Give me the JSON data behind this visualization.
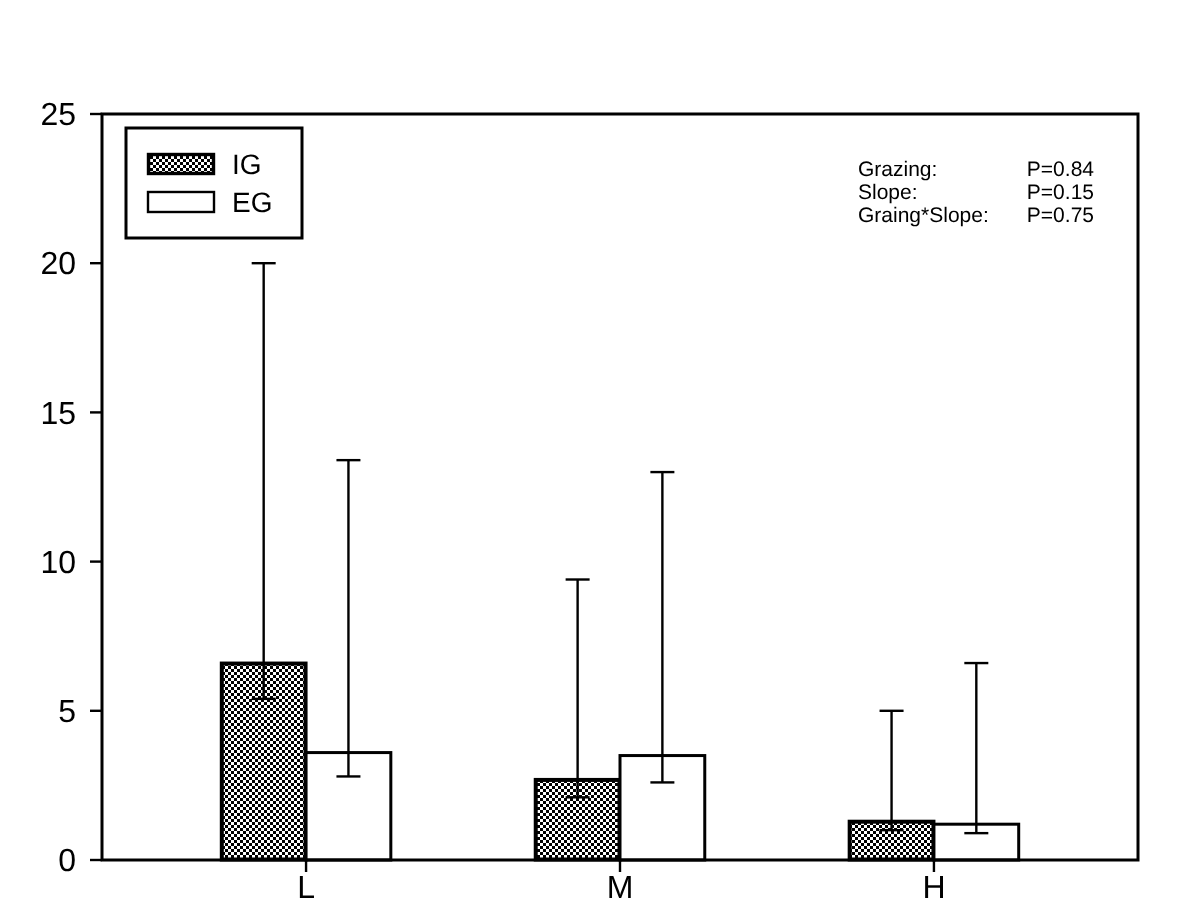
{
  "chart_data": {
    "type": "bar",
    "categories": [
      "L",
      "M",
      "H"
    ],
    "series": [
      {
        "name": "IG",
        "color": "#000000",
        "values": [
          6.6,
          2.7,
          1.3
        ],
        "errors": [
          [
            5.4,
            20.0
          ],
          [
            2.1,
            9.4
          ],
          [
            1.0,
            5.0
          ]
        ]
      },
      {
        "name": "EG",
        "color": "#ffffff",
        "values": [
          3.6,
          3.5,
          1.2
        ],
        "errors": [
          [
            2.8,
            13.4
          ],
          [
            2.6,
            13.0
          ],
          [
            0.9,
            6.6
          ]
        ]
      }
    ],
    "ylim": [
      0,
      25
    ],
    "yticks": [
      0,
      5,
      10,
      15,
      20,
      25
    ],
    "legend": "top left",
    "grid": false,
    "annotations": [
      "Grazing: P=0.84",
      "Slope: P=0.15",
      "Graing*Slope: P=0.75"
    ]
  }
}
